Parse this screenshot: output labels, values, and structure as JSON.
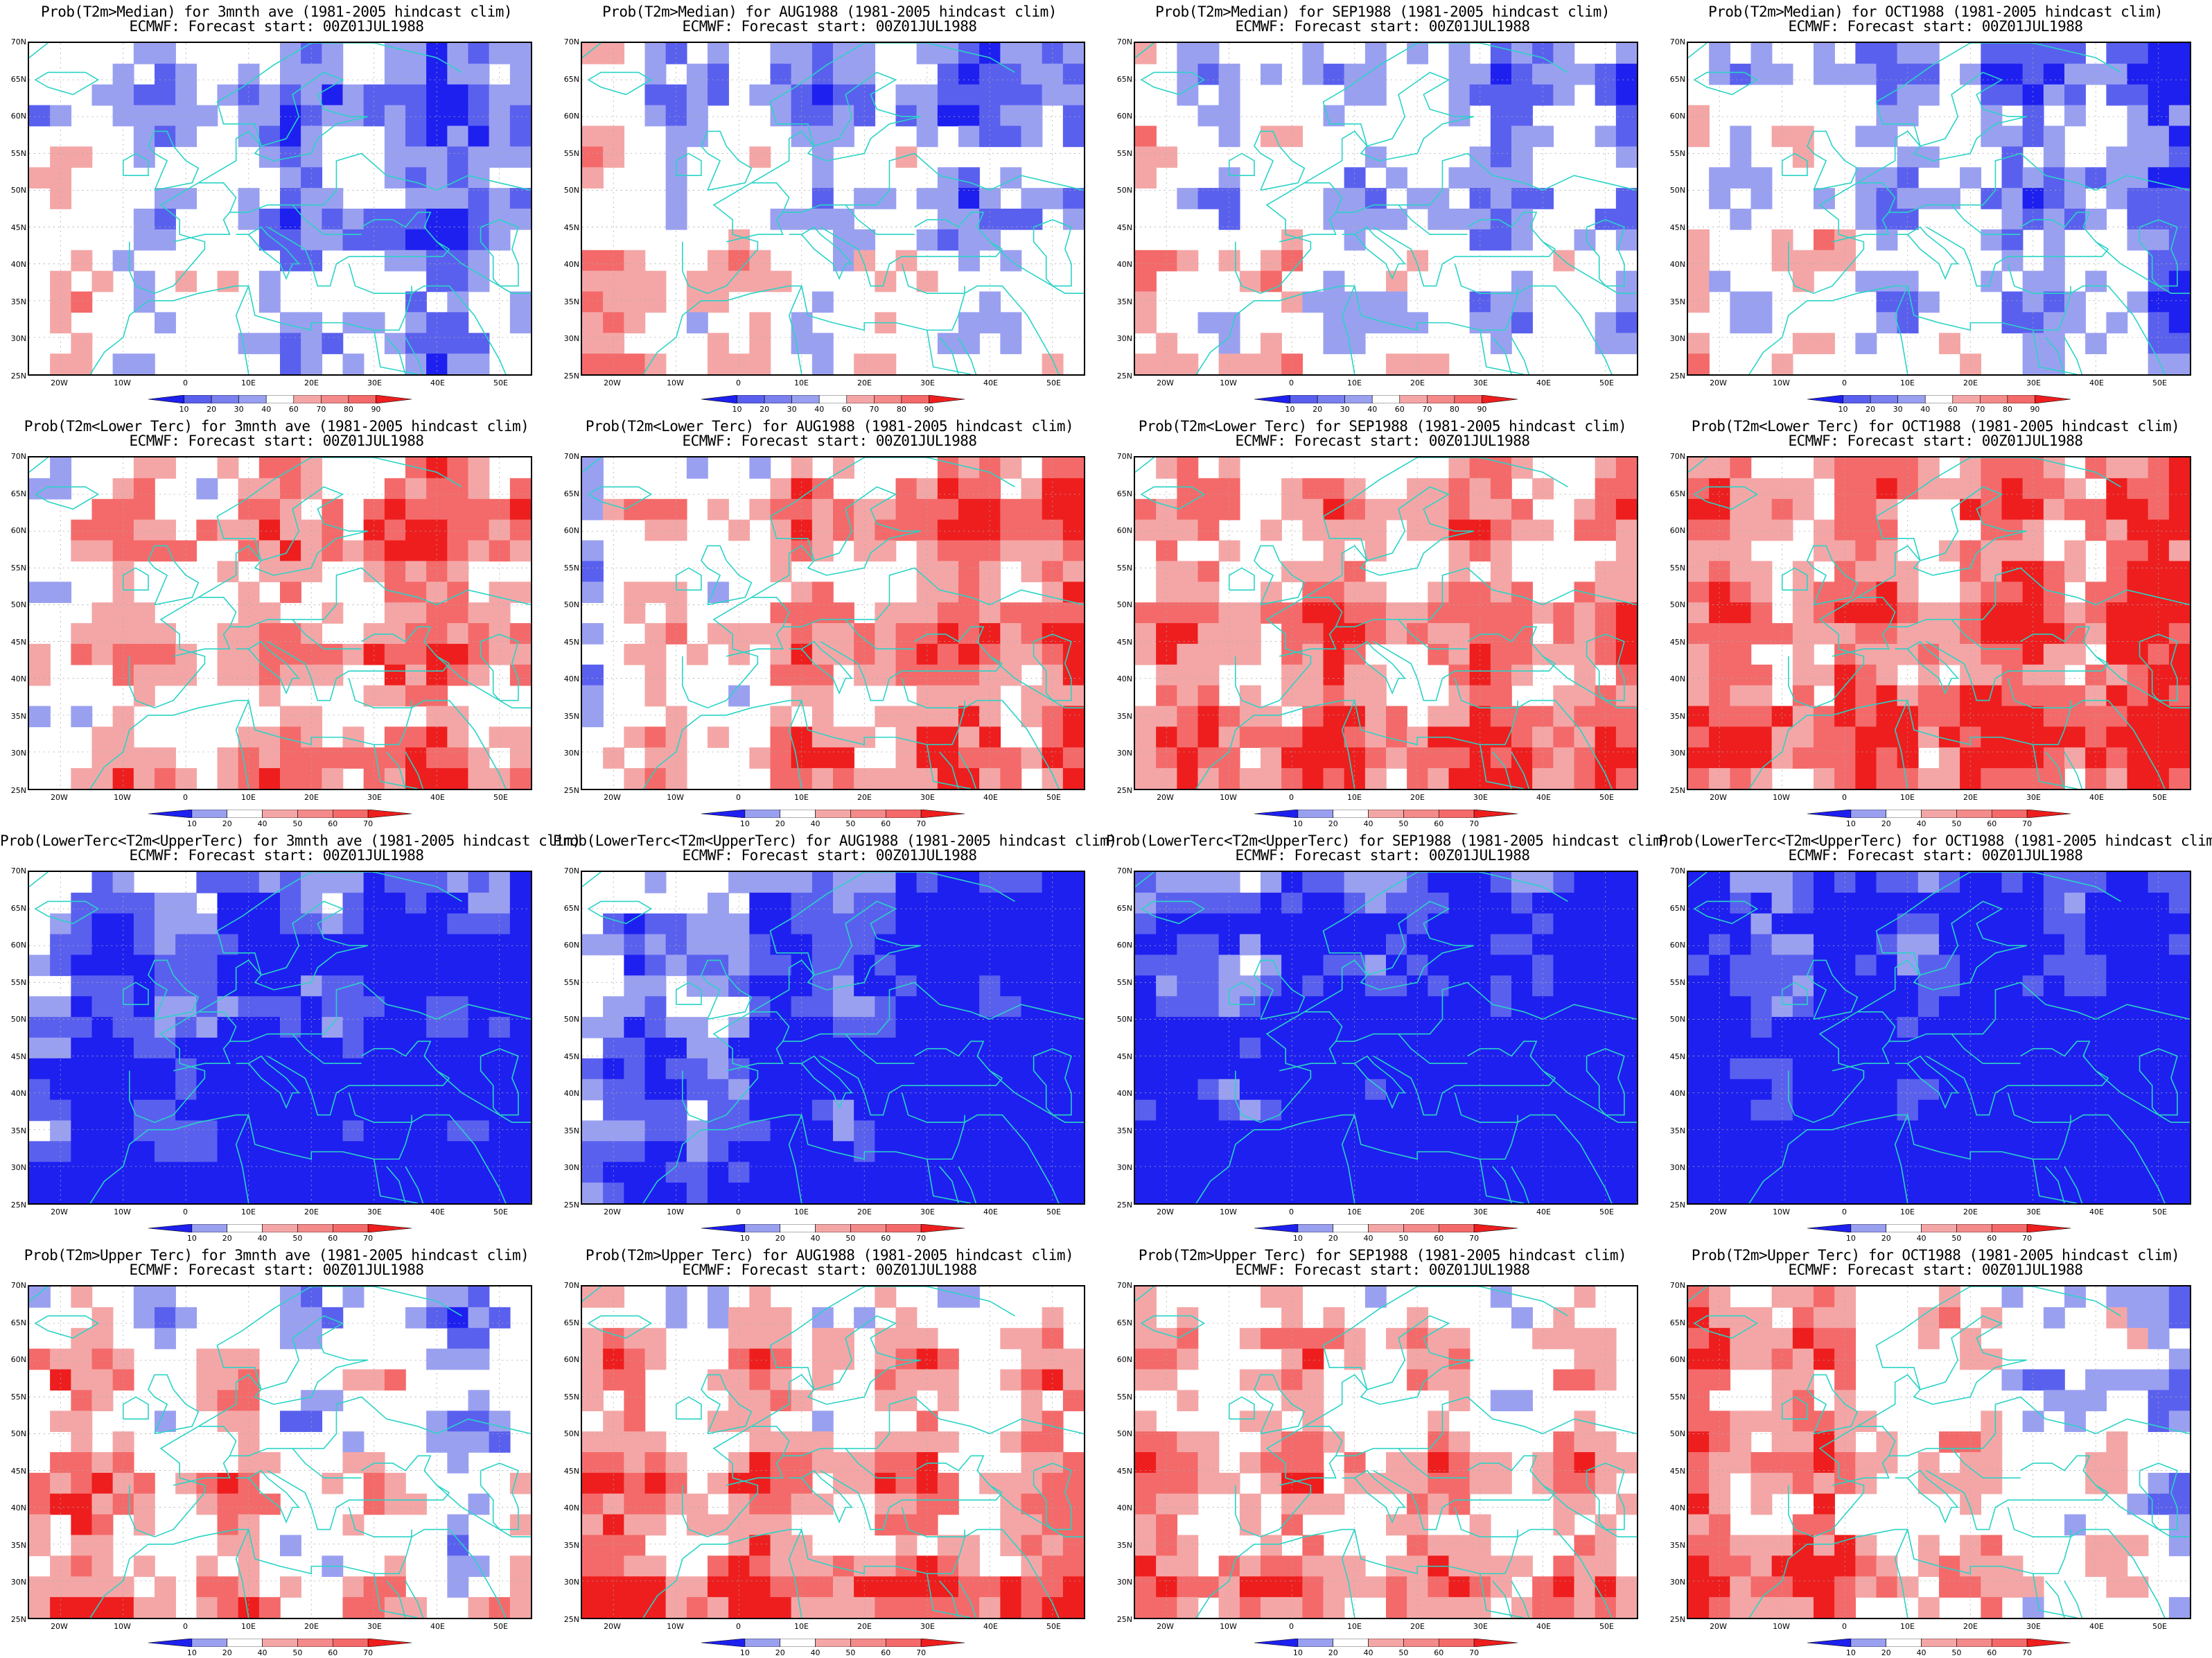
{
  "colors": {
    "blue_dark": "#1e20f0",
    "blue_mid": "#5a60ee",
    "blue_light": "#9aa0f0",
    "red_light": "#f4a6a6",
    "red_mid": "#f46a6a",
    "red_dark": "#ee1e1e",
    "coast": "#2ad3c6"
  },
  "axes": {
    "y_labels": [
      "70N",
      "65N",
      "60N",
      "55N",
      "50N",
      "45N",
      "40N",
      "35N",
      "30N",
      "25N"
    ],
    "x_labels": [
      "20W",
      "10W",
      "0",
      "10E",
      "20E",
      "30E",
      "40E",
      "50E"
    ]
  },
  "colorbars": {
    "median": [
      "10",
      "20",
      "30",
      "40",
      "60",
      "70",
      "80",
      "90"
    ],
    "tercile": [
      "10",
      "20",
      "40",
      "50",
      "60",
      "70"
    ]
  },
  "panels": [
    {
      "title1": "Prob(T2m>Median) for 3mnth ave (1981-2005 hindcast clim)",
      "title2": "ECMWF: Forecast start: 00Z01JUL1988",
      "scale": "median",
      "pattern": 0
    },
    {
      "title1": "Prob(T2m>Median) for AUG1988 (1981-2005 hindcast clim)",
      "title2": "ECMWF: Forecast start: 00Z01JUL1988",
      "scale": "median",
      "pattern": 1
    },
    {
      "title1": "Prob(T2m>Median) for SEP1988 (1981-2005 hindcast clim)",
      "title2": "ECMWF: Forecast start: 00Z01JUL1988",
      "scale": "median",
      "pattern": 2
    },
    {
      "title1": "Prob(T2m>Median) for OCT1988 (1981-2005 hindcast clim)",
      "title2": "ECMWF: Forecast start: 00Z01JUL1988",
      "scale": "median",
      "pattern": 3
    },
    {
      "title1": "Prob(T2m<Lower Terc) for 3mnth ave (1981-2005 hindcast clim)",
      "title2": "ECMWF: Forecast start: 00Z01JUL1988",
      "scale": "tercile",
      "pattern": 4
    },
    {
      "title1": "Prob(T2m<Lower Terc) for AUG1988 (1981-2005 hindcast clim)",
      "title2": "ECMWF: Forecast start: 00Z01JUL1988",
      "scale": "tercile",
      "pattern": 5
    },
    {
      "title1": "Prob(T2m<Lower Terc) for SEP1988 (1981-2005 hindcast clim)",
      "title2": "ECMWF: Forecast start: 00Z01JUL1988",
      "scale": "tercile",
      "pattern": 6
    },
    {
      "title1": "Prob(T2m<Lower Terc) for OCT1988 (1981-2005 hindcast clim)",
      "title2": "ECMWF: Forecast start: 00Z01JUL1988",
      "scale": "tercile",
      "pattern": 7
    },
    {
      "title1": "Prob(LowerTerc<T2m<UpperTerc) for 3mnth ave (1981-2005 hindcast clim)",
      "title2": "ECMWF: Forecast start: 00Z01JUL1988",
      "scale": "tercile",
      "pattern": 8
    },
    {
      "title1": "Prob(LowerTerc<T2m<UpperTerc) for AUG1988 (1981-2005 hindcast clim)",
      "title2": "ECMWF: Forecast start: 00Z01JUL1988",
      "scale": "tercile",
      "pattern": 9
    },
    {
      "title1": "Prob(LowerTerc<T2m<UpperTerc) for SEP1988 (1981-2005 hindcast clim)",
      "title2": "ECMWF: Forecast start: 00Z01JUL1988",
      "scale": "tercile",
      "pattern": 10
    },
    {
      "title1": "Prob(LowerTerc<T2m<UpperTerc) for OCT1988 (1981-2005 hindcast clim)",
      "title2": "ECMWF: Forecast start: 00Z01JUL1988",
      "scale": "tercile",
      "pattern": 11
    },
    {
      "title1": "Prob(T2m>Upper Terc) for 3mnth ave (1981-2005 hindcast clim)",
      "title2": "ECMWF: Forecast start: 00Z01JUL1988",
      "scale": "tercile",
      "pattern": 12
    },
    {
      "title1": "Prob(T2m>Upper Terc) for AUG1988 (1981-2005 hindcast clim)",
      "title2": "ECMWF: Forecast start: 00Z01JUL1988",
      "scale": "tercile",
      "pattern": 13
    },
    {
      "title1": "Prob(T2m>Upper Terc) for SEP1988 (1981-2005 hindcast clim)",
      "title2": "ECMWF: Forecast start: 00Z01JUL1988",
      "scale": "tercile",
      "pattern": 14
    },
    {
      "title1": "Prob(T2m>Upper Terc) for OCT1988 (1981-2005 hindcast clim)",
      "title2": "ECMWF: Forecast start: 00Z01JUL1988",
      "scale": "tercile",
      "pattern": 15
    }
  ]
}
